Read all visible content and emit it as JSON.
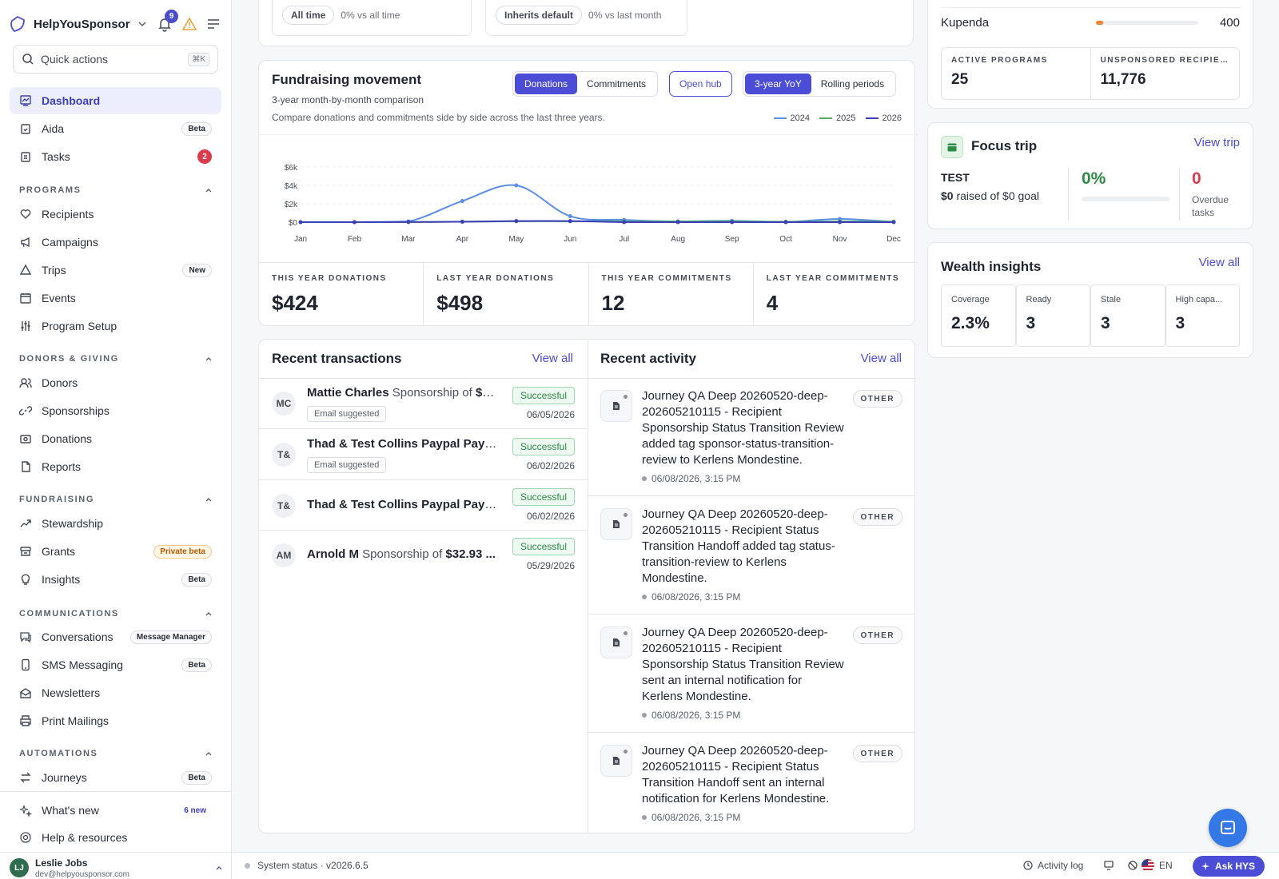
{
  "sidebar": {
    "brand": "HelpYouSponsor",
    "notifications_count": "9",
    "quick_actions": {
      "label": "Quick actions",
      "shortcut": "⌘K"
    },
    "items": {
      "dashboard": {
        "label": "Dashboard"
      },
      "aida": {
        "label": "Aida",
        "badge": "Beta"
      },
      "tasks": {
        "label": "Tasks",
        "badge": "2"
      },
      "recipients": {
        "label": "Recipients"
      },
      "campaigns": {
        "label": "Campaigns"
      },
      "trips": {
        "label": "Trips",
        "badge": "New"
      },
      "events": {
        "label": "Events"
      },
      "program_setup": {
        "label": "Program Setup"
      },
      "donors": {
        "label": "Donors"
      },
      "sponsorships": {
        "label": "Sponsorships"
      },
      "donations": {
        "label": "Donations"
      },
      "reports": {
        "label": "Reports"
      },
      "stewardship": {
        "label": "Stewardship"
      },
      "grants": {
        "label": "Grants",
        "badge": "Private beta"
      },
      "insights": {
        "label": "Insights",
        "badge": "Beta"
      },
      "conversations": {
        "label": "Conversations",
        "badge": "Message Manager"
      },
      "sms": {
        "label": "SMS Messaging",
        "badge": "Beta"
      },
      "newsletters": {
        "label": "Newsletters"
      },
      "print_mailings": {
        "label": "Print Mailings"
      },
      "journeys": {
        "label": "Journeys",
        "badge": "Beta"
      }
    },
    "sections": {
      "programs": "PROGRAMS",
      "donors_giving": "DONORS & GIVING",
      "fundraising": "FUNDRAISING",
      "communications": "COMMUNICATIONS",
      "automations": "AUTOMATIONS"
    },
    "whats_new": {
      "label": "What's new",
      "badge": "6 new"
    },
    "help": {
      "label": "Help & resources"
    },
    "user": {
      "initials": "LJ",
      "name": "Leslie Jobs",
      "email": "dev@helpyousponsor.com"
    }
  },
  "top_stub": {
    "left": {
      "chip": "All time",
      "text": "0% vs all time"
    },
    "right": {
      "chip": "Inherits default",
      "text": "0% vs last month"
    }
  },
  "fundraising": {
    "title": "Fundraising movement",
    "subtitle": "3-year month-by-month comparison",
    "description": "Compare donations and commitments side by side across the last three years.",
    "toggle_metric": [
      "Donations",
      "Commitments"
    ],
    "open_hub": "Open hub",
    "toggle_period": [
      "3-year YoY",
      "Rolling periods"
    ],
    "stats": [
      {
        "label": "THIS YEAR DONATIONS",
        "value": "$424"
      },
      {
        "label": "LAST YEAR DONATIONS",
        "value": "$498"
      },
      {
        "label": "THIS YEAR COMMITMENTS",
        "value": "12"
      },
      {
        "label": "LAST YEAR COMMITMENTS",
        "value": "4"
      }
    ]
  },
  "chart_data": {
    "type": "line",
    "categories": [
      "Jan",
      "Feb",
      "Mar",
      "Apr",
      "May",
      "Jun",
      "Jul",
      "Aug",
      "Sep",
      "Oct",
      "Nov",
      "Dec"
    ],
    "y_ticks": [
      "$0",
      "$2k",
      "$4k",
      "$6k"
    ],
    "ylim": [
      0,
      6000
    ],
    "grid": true,
    "legend_position": "top-right",
    "series": [
      {
        "name": "2024",
        "color": "#5b8ee6",
        "values": [
          0,
          0,
          80,
          2300,
          4000,
          650,
          250,
          80,
          150,
          20,
          350,
          30
        ]
      },
      {
        "name": "2025",
        "color": "#4caf63",
        "values": [
          0,
          0,
          0,
          50,
          100,
          100,
          80,
          80,
          100,
          40,
          80,
          50
        ]
      },
      {
        "name": "2026",
        "color": "#3d3fb8",
        "values": [
          0,
          0,
          20,
          40,
          120,
          120,
          0,
          0,
          0,
          0,
          0,
          0
        ]
      }
    ]
  },
  "transactions": {
    "title": "Recent transactions",
    "view_all": "View all",
    "rows": [
      {
        "initials": "MC",
        "name": "Mattie Charles",
        "text": "Sponsorship of",
        "amount": "$2...",
        "tag": "Email suggested",
        "status": "Successful",
        "date": "06/05/2026"
      },
      {
        "initials": "T&",
        "name": "Thad & Test Collins Paypal Paypal...",
        "tag": "Email suggested",
        "status": "Successful",
        "date": "06/02/2026"
      },
      {
        "initials": "T&",
        "name": "Thad & Test Collins Paypal Paypal...",
        "status": "Successful",
        "date": "06/02/2026"
      },
      {
        "initials": "AM",
        "name": "Arnold M",
        "text": "Sponsorship of",
        "amount": "$32.93 ...",
        "status": "Successful",
        "date": "05/29/2026"
      }
    ]
  },
  "activity": {
    "title": "Recent activity",
    "view_all": "View all",
    "rows": [
      {
        "text": "Journey QA Deep 20260520-deep-202605210115 - Recipient Sponsorship Status Transition Review added tag sponsor-status-transition-review to Kerlens Mondestine.",
        "time": "06/08/2026, 3:15 PM",
        "tag": "OTHER"
      },
      {
        "text": "Journey QA Deep 20260520-deep-202605210115 - Recipient Status Transition Handoff added tag status-transition-review to Kerlens Mondestine.",
        "time": "06/08/2026, 3:15 PM",
        "tag": "OTHER"
      },
      {
        "text": "Journey QA Deep 20260520-deep-202605210115 - Recipient Sponsorship Status Transition Review sent an internal notification for Kerlens Mondestine.",
        "time": "06/08/2026, 3:15 PM",
        "tag": "OTHER"
      },
      {
        "text": "Journey QA Deep 20260520-deep-202605210115 - Recipient Status Transition Handoff sent an internal notification for Kerlens Mondestine.",
        "time": "06/08/2026, 3:15 PM",
        "tag": "OTHER"
      }
    ]
  },
  "programs_card": {
    "row_name": "Kupenda",
    "row_value": "400",
    "row_fill_fraction": 0.07,
    "active_label": "ACTIVE PROGRAMS",
    "active_value": "25",
    "unsponsored_label": "UNSPONSORED RECIPIE...",
    "unsponsored_value": "11,776"
  },
  "focus_trip": {
    "title": "Focus trip",
    "view": "View trip",
    "trip_name": "TEST",
    "raised_amount": "$0",
    "raised_text": "raised of $0 goal",
    "percent": "0%",
    "overdue_count": "0",
    "overdue_label": "Overdue tasks"
  },
  "wealth": {
    "title": "Wealth insights",
    "view_all": "View all",
    "cells": [
      {
        "label": "Coverage",
        "value": "2.3%"
      },
      {
        "label": "Ready",
        "value": "3"
      },
      {
        "label": "Stale",
        "value": "3"
      },
      {
        "label": "High capa...",
        "value": "3"
      }
    ]
  },
  "footer": {
    "status": "System status · v2026.6.5",
    "activity_log": "Activity log",
    "language": "EN",
    "ask": "Ask HYS"
  }
}
